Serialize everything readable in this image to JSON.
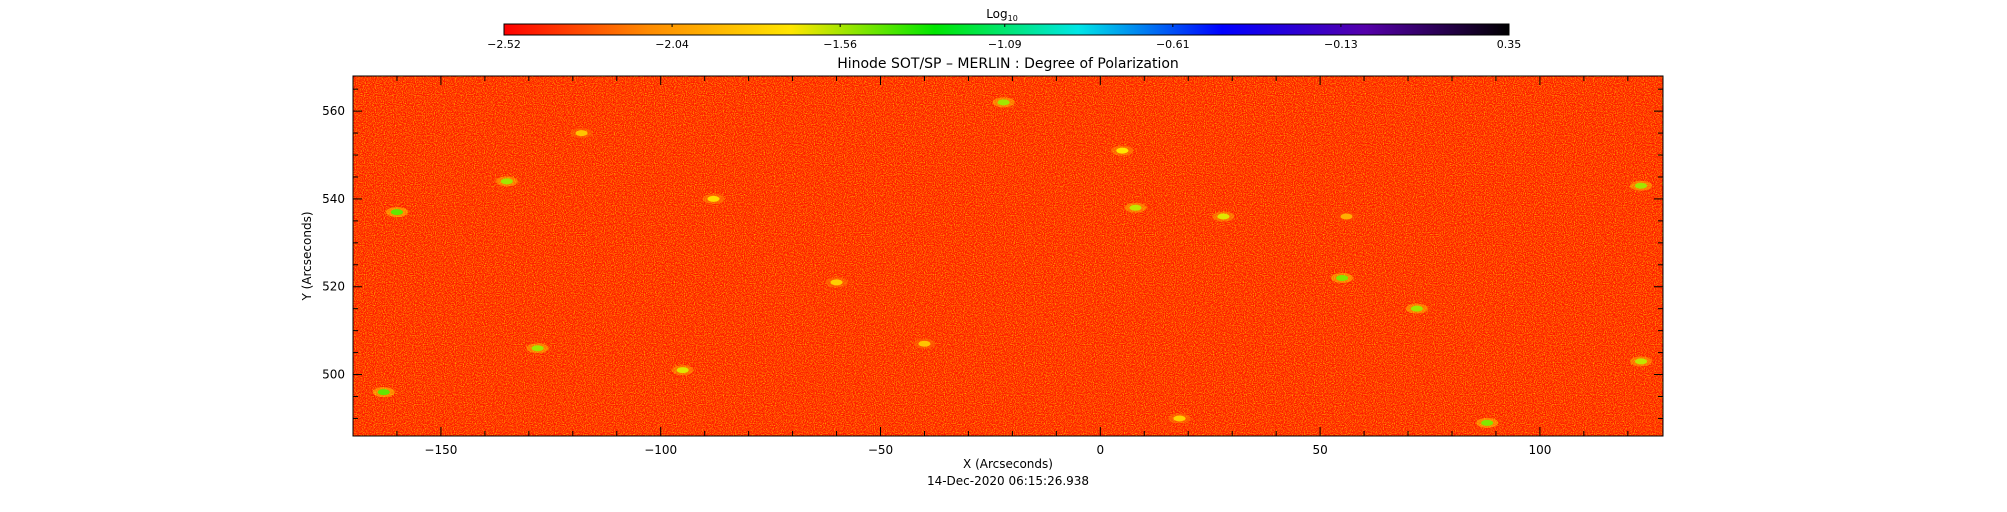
{
  "chart_data": {
    "type": "heatmap",
    "title": "Hinode SOT/SP – MERLIN : Degree of Polarization",
    "xlabel": "X (Arcseconds)",
    "ylabel": "Y (Arcseconds)",
    "timestamp": "14-Dec-2020 06:15:26.938",
    "xlim": [
      -170,
      128
    ],
    "ylim": [
      486,
      568
    ],
    "x_ticks": [
      -150,
      -100,
      -50,
      0,
      50,
      100
    ],
    "y_ticks": [
      500,
      520,
      540,
      560
    ],
    "colorbar": {
      "label_main": "Log",
      "label_sub": "10",
      "range": [
        -2.52,
        0.35
      ],
      "tick_values": [
        -2.52,
        -2.04,
        -1.56,
        -1.09,
        -0.61,
        -0.13,
        0.35
      ],
      "tick_labels": [
        "-2.52",
        "-2.04",
        "-1.56",
        "-1.09",
        "-0.61",
        "-0.13",
        "0.35"
      ],
      "colors": [
        "#ff0000",
        "#ff8a00",
        "#ffe600",
        "#00e600",
        "#00e6e6",
        "#0000ff",
        "#5500aa",
        "#000000"
      ]
    },
    "background_value": -2.45,
    "hotspots": [
      {
        "x": -163,
        "y": 496,
        "value": -1.45
      },
      {
        "x": -135,
        "y": 544,
        "value": -1.55
      },
      {
        "x": -160,
        "y": 537,
        "value": -1.45
      },
      {
        "x": -118,
        "y": 555,
        "value": -1.85
      },
      {
        "x": -95,
        "y": 501,
        "value": -1.65
      },
      {
        "x": -88,
        "y": 540,
        "value": -1.75
      },
      {
        "x": -60,
        "y": 521,
        "value": -1.8
      },
      {
        "x": -40,
        "y": 507,
        "value": -1.85
      },
      {
        "x": -22,
        "y": 562,
        "value": -1.55
      },
      {
        "x": 5,
        "y": 551,
        "value": -1.7
      },
      {
        "x": 8,
        "y": 538,
        "value": -1.6
      },
      {
        "x": 28,
        "y": 536,
        "value": -1.65
      },
      {
        "x": 56,
        "y": 536,
        "value": -1.95
      },
      {
        "x": 55,
        "y": 522,
        "value": -1.5
      },
      {
        "x": 72,
        "y": 515,
        "value": -1.55
      },
      {
        "x": 88,
        "y": 489,
        "value": -1.5
      },
      {
        "x": 123,
        "y": 543,
        "value": -1.55
      },
      {
        "x": 123,
        "y": 503,
        "value": -1.6
      },
      {
        "x": -128,
        "y": 506,
        "value": -1.55
      },
      {
        "x": 18,
        "y": 490,
        "value": -1.8
      }
    ]
  }
}
